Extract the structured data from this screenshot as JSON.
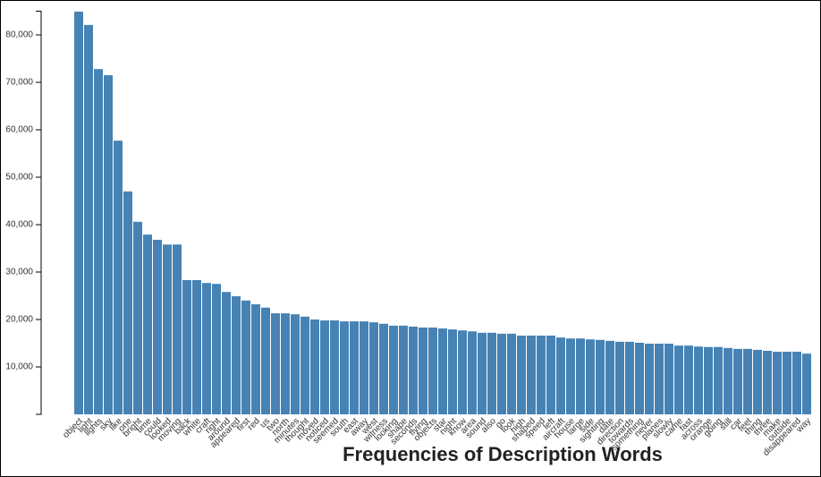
{
  "chart_data": {
    "type": "bar",
    "title": "Frequencies of Description Words",
    "categories": [
      "object",
      "light",
      "lights",
      "sky",
      "like",
      "one",
      "bright",
      "time",
      "could",
      "looked",
      "moving",
      "back",
      "white",
      "craft",
      "right",
      "around",
      "appeared",
      "first",
      "red",
      "us",
      "two",
      "north",
      "minutes",
      "thought",
      "moved",
      "noticed",
      "seemed",
      "south",
      "east",
      "away",
      "west",
      "witness",
      "looking",
      "shape",
      "seconds",
      "flying",
      "objects",
      "star",
      "night",
      "know",
      "area",
      "sound",
      "also",
      "go",
      "look",
      "high",
      "shaped",
      "speed",
      "left",
      "aircraft",
      "house",
      "large",
      "side",
      "sighting",
      "date",
      "direction",
      "towards",
      "something",
      "never",
      "planes",
      "slowly",
      "came",
      "fast",
      "across",
      "orange",
      "going",
      "still",
      "car",
      "feet",
      "thing",
      "three",
      "make",
      "outside",
      "disappeared",
      "way"
    ],
    "values": [
      84900,
      82100,
      72800,
      71500,
      57700,
      47000,
      40600,
      37900,
      36800,
      35800,
      35800,
      28300,
      28300,
      27700,
      27500,
      25800,
      24900,
      24000,
      23200,
      22500,
      21300,
      21300,
      21100,
      20600,
      20000,
      19800,
      19800,
      19600,
      19600,
      19600,
      19400,
      19100,
      18700,
      18700,
      18500,
      18300,
      18300,
      18100,
      17900,
      17700,
      17500,
      17200,
      17200,
      17000,
      17000,
      16600,
      16600,
      16600,
      16600,
      16200,
      16000,
      16000,
      15800,
      15700,
      15500,
      15300,
      15300,
      15100,
      14900,
      14900,
      14900,
      14500,
      14500,
      14300,
      14200,
      14200,
      14000,
      13800,
      13800,
      13600,
      13400,
      13200,
      13200,
      13200,
      12800
    ],
    "color": "#4682b4",
    "ylim": [
      0,
      85000
    ],
    "yticks": [
      {
        "value": 10000,
        "label": "10,000"
      },
      {
        "value": 20000,
        "label": "20,000"
      },
      {
        "value": 30000,
        "label": "30,000"
      },
      {
        "value": 40000,
        "label": "40,000"
      },
      {
        "value": 50000,
        "label": "50,000"
      },
      {
        "value": 60000,
        "label": "60,000"
      },
      {
        "value": 70000,
        "label": "70,000"
      },
      {
        "value": 80000,
        "label": "80,000"
      }
    ]
  }
}
